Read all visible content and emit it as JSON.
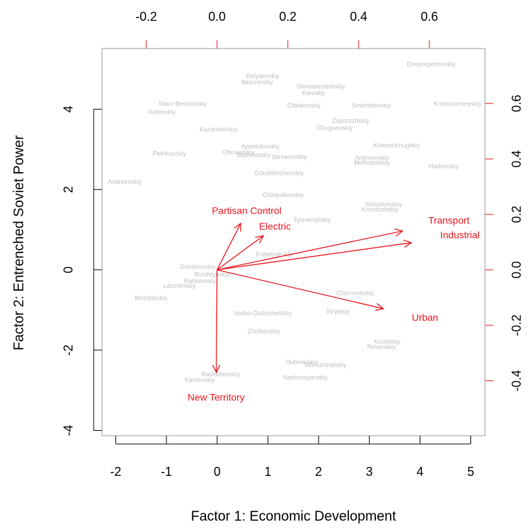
{
  "chart_data": {
    "type": "biplot",
    "x_label": "Factor 1: Economic Development",
    "y_label": "Factor 2: Entrenched Soviet Power",
    "xlim": [
      -2.27,
      5.28
    ],
    "ylim": [
      -4.13,
      5.51
    ],
    "xticks": [
      -2,
      -1,
      0,
      1,
      2,
      3,
      4,
      5
    ],
    "yticks": [
      -4,
      -2,
      0,
      2,
      4
    ],
    "x2lim": [
      -0.325,
      0.757
    ],
    "x2ticks": [
      -0.2,
      {
        "value": 0,
        "label": "0.0"
      },
      0.2,
      0.4,
      0.6
    ],
    "y2lim": [
      -0.598,
      0.798
    ],
    "y2ticks": [
      -0.4,
      -0.2,
      {
        "value": 0,
        "label": "0.0"
      },
      0.2,
      0.4,
      0.6
    ],
    "points": {
      "color": "#bdbdbd",
      "labels": [
        "Dnepropetrovskiy",
        "Belyaevskiy",
        "Belozerskiy",
        "Slavyanoserbskiy",
        "Kievskiy",
        "Staro-Beshevskiy",
        "Hotenskiy",
        "Chkalovskiy",
        "Sinelnikovskiy",
        "Krasnoarmeyskiy",
        "Zaporozhskiy",
        "Chuguevskiy",
        "Kazankovskiy",
        "Kremenchugskiy",
        "Varvarovskiy",
        "Artemovskiy",
        "Melitopolskiy",
        "Harkovskiy",
        "Gorodishchenskiy",
        "Chistyakovskiy",
        "Shepetovskiy",
        "Krivorozhskiy",
        "Tysmenytskiy",
        "Dombrovskiy",
        "Burshtynskiy",
        "Rafalovskiy",
        "Lanchinskiy",
        "Chernovitskiy",
        "Mozdokskiy",
        "Veliko-Glubochetskiy",
        "Stryiskiy",
        "Zholkevskiy",
        "Kovelskiy",
        "Rovenskiy",
        "Storozhinetskiy",
        "Dubnovskiy",
        "Radekhovskiy",
        "Kamenskiy",
        "Nadvornyanskiy",
        "Apostolovskiy",
        "Bobrinetskiy",
        "Olhovatskiy",
        "Petrikovskiy",
        "Andreevskiy",
        "Kobelyakskiy"
      ],
      "x": [
        4.22,
        0.9,
        0.79,
        2.04,
        1.9,
        -0.68,
        -1.09,
        1.71,
        3.04,
        4.74,
        2.63,
        2.32,
        0.03,
        3.54,
        1.42,
        3.05,
        3.05,
        4.47,
        1.22,
        1.3,
        3.28,
        3.21,
        1.87,
        -0.38,
        -0.1,
        -0.34,
        -0.74,
        2.72,
        -1.3,
        0.9,
        2.38,
        0.92,
        3.35,
        3.24,
        2.13,
        1.67,
        0.07,
        -0.34,
        1.74,
        0.85,
        0.72,
        0.42,
        -0.94,
        -1.82,
        1.12
      ],
      "y": [
        5.11,
        4.82,
        4.66,
        4.56,
        4.39,
        4.13,
        3.92,
        4.08,
        4.08,
        4.13,
        3.7,
        3.52,
        3.49,
        3.09,
        2.8,
        2.78,
        2.66,
        2.57,
        2.4,
        1.85,
        1.62,
        1.49,
        1.23,
        0.07,
        -0.12,
        -0.29,
        -0.41,
        -0.59,
        -0.71,
        -1.09,
        -1.05,
        -1.54,
        -1.8,
        -1.93,
        -2.38,
        -2.31,
        -2.61,
        -2.75,
        -2.69,
        3.06,
        2.85,
        2.92,
        2.88,
        2.18,
        0.38
      ]
    },
    "loadings": {
      "color": "#e8141c",
      "names": [
        "Transport",
        "Industrial",
        "Urban",
        "Electric",
        "Partisan Control",
        "New Territory"
      ],
      "x": [
        0.524,
        0.549,
        0.47,
        0.131,
        0.067,
        -0.002
      ],
      "y": [
        0.14,
        0.098,
        -0.14,
        0.123,
        0.168,
        -0.37
      ]
    }
  }
}
